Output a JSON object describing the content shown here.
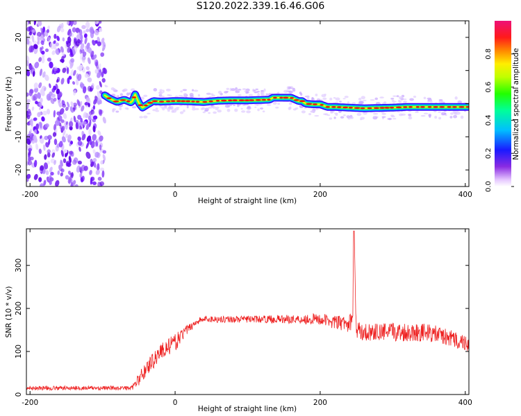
{
  "title": "S120.2022.339.16.46.G06",
  "chart_data": [
    {
      "type": "heatmap",
      "ylabel": "Frequency (Hz)",
      "xlabel": "Height of straight line (km)",
      "xlim": [
        -205,
        405
      ],
      "ylim": [
        -25,
        25
      ],
      "xticks": [
        -200,
        0,
        200,
        400
      ],
      "yticks": [
        -20,
        -10,
        0,
        10,
        20
      ],
      "noise_region": [
        -205,
        -97
      ],
      "ridge": {
        "x": [
          -97,
          -90,
          -80,
          -70,
          -60,
          -55,
          -50,
          -45,
          -40,
          -30,
          -20,
          0,
          20,
          40,
          60,
          80,
          100,
          130,
          135,
          140,
          160,
          170,
          175,
          180,
          190,
          200,
          210,
          220,
          240,
          260,
          280,
          300,
          320,
          340,
          360,
          380,
          405
        ],
        "y": [
          2.5,
          1.5,
          0.5,
          1.2,
          0.3,
          2.8,
          0.2,
          -1.2,
          -0.5,
          0.8,
          0.6,
          0.8,
          0.7,
          0.5,
          0.9,
          1.0,
          1.0,
          1.2,
          1.8,
          1.8,
          1.8,
          0.8,
          0.8,
          0.0,
          -0.2,
          -0.2,
          -1.0,
          -1.0,
          -1.2,
          -1.4,
          -1.3,
          -1.2,
          -1.0,
          -1.0,
          -1.0,
          -1.0,
          -1.0
        ]
      },
      "colorbar": {
        "label": "Normalized spectral amplitude",
        "ticks": [
          "0.0",
          "0.2",
          "0.4",
          "0.6",
          "0.8"
        ],
        "range": [
          0,
          1
        ]
      }
    },
    {
      "type": "line",
      "ylabel": "SNR (10 * v/v)",
      "xlabel": "Height of straight line (km)",
      "xlim": [
        -205,
        405
      ],
      "ylim": [
        0,
        385
      ],
      "xticks": [
        -200,
        0,
        200,
        400
      ],
      "yticks": [
        0,
        100,
        200,
        300
      ],
      "color": "#ee2222",
      "series": [
        {
          "x": [
            -205,
            -60,
            -55,
            -50,
            -40,
            -30,
            -20,
            -10,
            0,
            10,
            20,
            30,
            40,
            60,
            80,
            100,
            120,
            140,
            160,
            180,
            200,
            210,
            220,
            230,
            240,
            245,
            246,
            247,
            249,
            250,
            260,
            280,
            300,
            320,
            340,
            360,
            380,
            400,
            405
          ],
          "values": [
            15,
            15,
            25,
            35,
            60,
            80,
            100,
            110,
            120,
            140,
            155,
            170,
            175,
            175,
            175,
            175,
            175,
            175,
            175,
            175,
            175,
            172,
            168,
            165,
            165,
            175,
            380,
            380,
            175,
            150,
            145,
            145,
            145,
            145,
            145,
            140,
            130,
            120,
            120
          ],
          "noise": [
            5,
            5,
            10,
            15,
            20,
            20,
            20,
            20,
            20,
            15,
            10,
            8,
            8,
            8,
            8,
            8,
            8,
            10,
            10,
            12,
            14,
            14,
            16,
            18,
            20,
            20,
            0,
            0,
            20,
            20,
            20,
            20,
            22,
            22,
            22,
            20,
            20,
            20,
            20
          ]
        }
      ]
    }
  ]
}
